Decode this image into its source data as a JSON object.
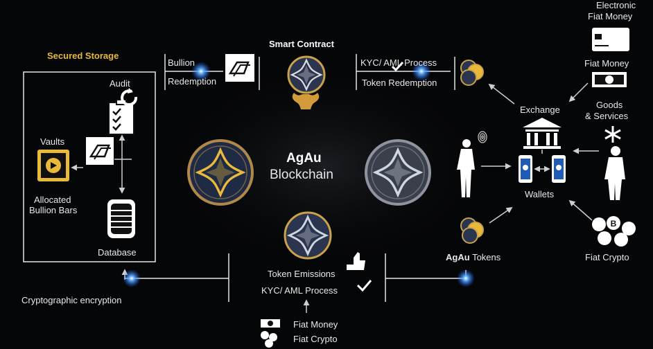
{
  "storage": {
    "title": "Secured Storage",
    "audit": "Audit",
    "vaults": "Vaults",
    "allocated_line1": "Allocated",
    "allocated_line2": "Bullion Bars",
    "database": "Database"
  },
  "bullion": {
    "line1": "Bullion",
    "line2": "Redemption"
  },
  "smart_contract": "Smart Contract",
  "kyc_top": {
    "line1": "KYC/ AML Process",
    "line2": "Token Redemption"
  },
  "center": {
    "title": "AgAu",
    "subtitle": "Blockchain"
  },
  "exchange": "Exchange",
  "electronic": {
    "line1": "Electronic",
    "line2": "Fiat Money"
  },
  "fiat_money_right": "Fiat Money",
  "goods": {
    "line1": "Goods",
    "line2": "& Services"
  },
  "wallets": "Wallets",
  "agau_tokens": {
    "bold": "AgAu",
    "rest": "Tokens"
  },
  "fiat_crypto_right": "Fiat Crypto",
  "bottom": {
    "token_emissions": "Token Emissions",
    "kyc": "KYC/ AML Process",
    "fiat_money": "Fiat Money",
    "fiat_crypto": "Fiat Crypto"
  },
  "crypto_label": "Cryptographic encryption",
  "colors": {
    "gold": "#e8b93a",
    "glow": "#4aa3ff",
    "background": "#050607",
    "line": "#cfcfcf"
  }
}
